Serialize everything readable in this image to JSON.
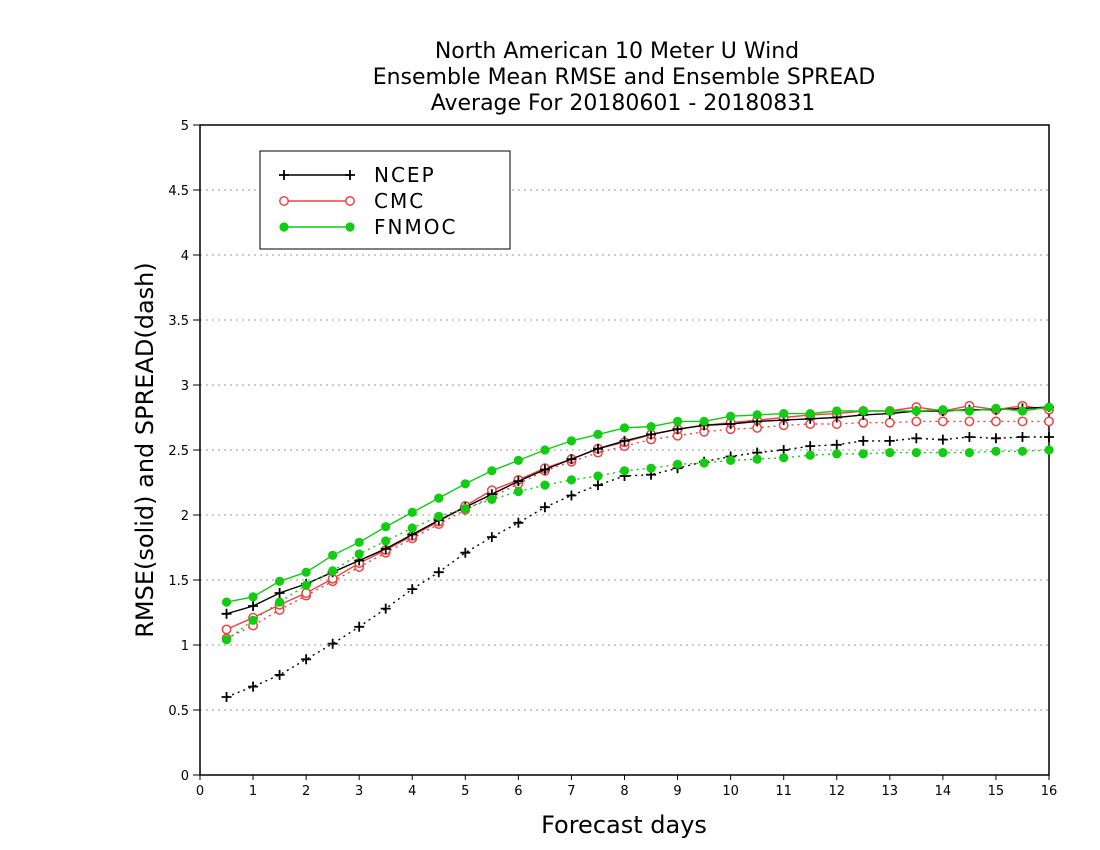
{
  "chart_data": {
    "type": "line",
    "title": [
      "North American 10 Meter U Wind",
      "Ensemble Mean RMSE and Ensemble SPREAD",
      "Average For 20180601 - 20180831"
    ],
    "xlabel": "Forecast days",
    "ylabel": "RMSE(solid) and SPREAD(dash)",
    "xlim": [
      0,
      16
    ],
    "ylim": [
      0,
      5
    ],
    "xticks": [
      "0",
      "1",
      "2",
      "3",
      "4",
      "5",
      "6",
      "7",
      "8",
      "9",
      "10",
      "11",
      "12",
      "13",
      "14",
      "15",
      "16"
    ],
    "yticks": [
      "0",
      "0.5",
      "1",
      "1.5",
      "2",
      "2.5",
      "3",
      "3.5",
      "4",
      "4.5",
      "5"
    ],
    "ytick_values": [
      0,
      0.5,
      1,
      1.5,
      2,
      2.5,
      3,
      3.5,
      4,
      4.5,
      5
    ],
    "grid": "horizontal-dotted",
    "legend_position": "top-left",
    "x": [
      0.5,
      1,
      1.5,
      2,
      2.5,
      3,
      3.5,
      4,
      4.5,
      5,
      5.5,
      6,
      6.5,
      7,
      7.5,
      8,
      8.5,
      9,
      9.5,
      10,
      10.5,
      11,
      11.5,
      12,
      12.5,
      13,
      13.5,
      14,
      14.5,
      15,
      15.5,
      16
    ],
    "series": [
      {
        "name": "NCEP",
        "color": "#000000",
        "marker": "plus",
        "rmse": [
          1.24,
          1.3,
          1.4,
          1.47,
          1.56,
          1.65,
          1.74,
          1.85,
          1.96,
          2.06,
          2.16,
          2.26,
          2.35,
          2.43,
          2.51,
          2.57,
          2.62,
          2.66,
          2.69,
          2.7,
          2.72,
          2.73,
          2.74,
          2.75,
          2.77,
          2.78,
          2.8,
          2.8,
          2.81,
          2.81,
          2.82,
          2.83
        ],
        "spread": [
          0.6,
          0.68,
          0.77,
          0.89,
          1.01,
          1.14,
          1.28,
          1.43,
          1.56,
          1.71,
          1.83,
          1.94,
          2.06,
          2.15,
          2.23,
          2.3,
          2.31,
          2.36,
          2.41,
          2.45,
          2.48,
          2.5,
          2.53,
          2.54,
          2.57,
          2.57,
          2.59,
          2.58,
          2.6,
          2.59,
          2.6,
          2.6
        ]
      },
      {
        "name": "CMC",
        "color": "#ee4444",
        "marker": "open-circle",
        "rmse": [
          1.12,
          1.21,
          1.31,
          1.4,
          1.51,
          1.63,
          1.73,
          1.84,
          1.95,
          2.07,
          2.19,
          2.27,
          2.36,
          2.43,
          2.51,
          2.56,
          2.62,
          2.66,
          2.69,
          2.71,
          2.73,
          2.75,
          2.77,
          2.78,
          2.8,
          2.8,
          2.83,
          2.8,
          2.84,
          2.81,
          2.84,
          2.81
        ],
        "spread": [
          1.05,
          1.15,
          1.27,
          1.38,
          1.49,
          1.6,
          1.71,
          1.82,
          1.93,
          2.04,
          2.14,
          2.24,
          2.34,
          2.41,
          2.48,
          2.53,
          2.58,
          2.61,
          2.64,
          2.66,
          2.67,
          2.69,
          2.7,
          2.7,
          2.71,
          2.71,
          2.72,
          2.72,
          2.72,
          2.72,
          2.72,
          2.72
        ]
      },
      {
        "name": "FNMOC",
        "color": "#11cc11",
        "marker": "filled-circle",
        "rmse": [
          1.33,
          1.37,
          1.49,
          1.56,
          1.69,
          1.79,
          1.91,
          2.02,
          2.13,
          2.24,
          2.34,
          2.42,
          2.5,
          2.57,
          2.62,
          2.67,
          2.68,
          2.72,
          2.72,
          2.76,
          2.77,
          2.78,
          2.78,
          2.8,
          2.8,
          2.8,
          2.8,
          2.81,
          2.8,
          2.82,
          2.8,
          2.83
        ],
        "spread": [
          1.04,
          1.19,
          1.33,
          1.46,
          1.57,
          1.7,
          1.8,
          1.9,
          1.99,
          2.05,
          2.12,
          2.18,
          2.23,
          2.27,
          2.3,
          2.34,
          2.36,
          2.39,
          2.4,
          2.42,
          2.43,
          2.44,
          2.46,
          2.47,
          2.47,
          2.48,
          2.48,
          2.48,
          2.48,
          2.49,
          2.49,
          2.5
        ]
      }
    ]
  }
}
